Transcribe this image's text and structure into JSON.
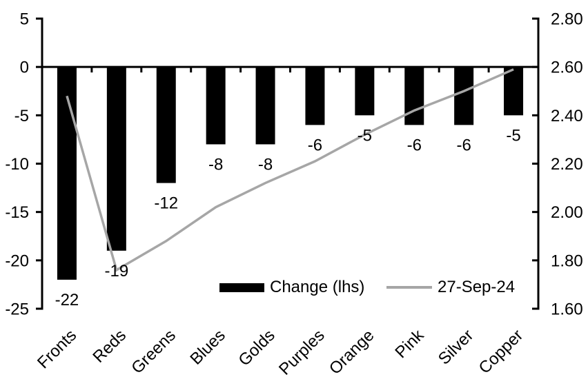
{
  "chart_data": {
    "type": "bar",
    "subtype": "combo-bar-line-dual-axis",
    "title": "",
    "xlabel": "",
    "ylabel": "",
    "grid": false,
    "background": "#ffffff",
    "categories": [
      "Fronts",
      "Reds",
      "Greens",
      "Blues",
      "Golds",
      "Purples",
      "Orange",
      "Pink",
      "Silver",
      "Copper"
    ],
    "series": [
      {
        "name": "Change (lhs)",
        "type": "bar",
        "axis": "left",
        "color": "#000000",
        "values": [
          -22,
          -19,
          -12,
          -8,
          -8,
          -6,
          -5,
          -6,
          -6,
          -5
        ],
        "labels": [
          "-22",
          "-19",
          "-12",
          "-8",
          "-8",
          "-6",
          "-5",
          "-6",
          "-6",
          "-5"
        ]
      },
      {
        "name": "27-Sep-24",
        "type": "line",
        "axis": "right",
        "color": "#a6a6a6",
        "values": [
          2.48,
          1.76,
          1.88,
          2.02,
          2.12,
          2.21,
          2.32,
          2.42,
          2.5,
          2.59
        ]
      }
    ],
    "left_axis": {
      "min": -25,
      "max": 5,
      "tick_values": [
        5,
        0,
        -5,
        -10,
        -15,
        -20,
        -25
      ],
      "tick_labels": [
        "5",
        "0",
        "-5",
        "-10",
        "-15",
        "-20",
        "-25"
      ]
    },
    "right_axis": {
      "min": 1.6,
      "max": 2.8,
      "tick_values": [
        2.8,
        2.6,
        2.4,
        2.2,
        2.0,
        1.8,
        1.6
      ],
      "tick_labels": [
        "2.80",
        "2.60",
        "2.40",
        "2.20",
        "2.00",
        "1.80",
        "1.60"
      ]
    },
    "legend": {
      "position": "bottom-center-inside",
      "items": [
        {
          "label": "Change (lhs)",
          "swatch": "bar",
          "color": "#000000"
        },
        {
          "label": "27-Sep-24",
          "swatch": "line",
          "color": "#a6a6a6"
        }
      ]
    }
  }
}
